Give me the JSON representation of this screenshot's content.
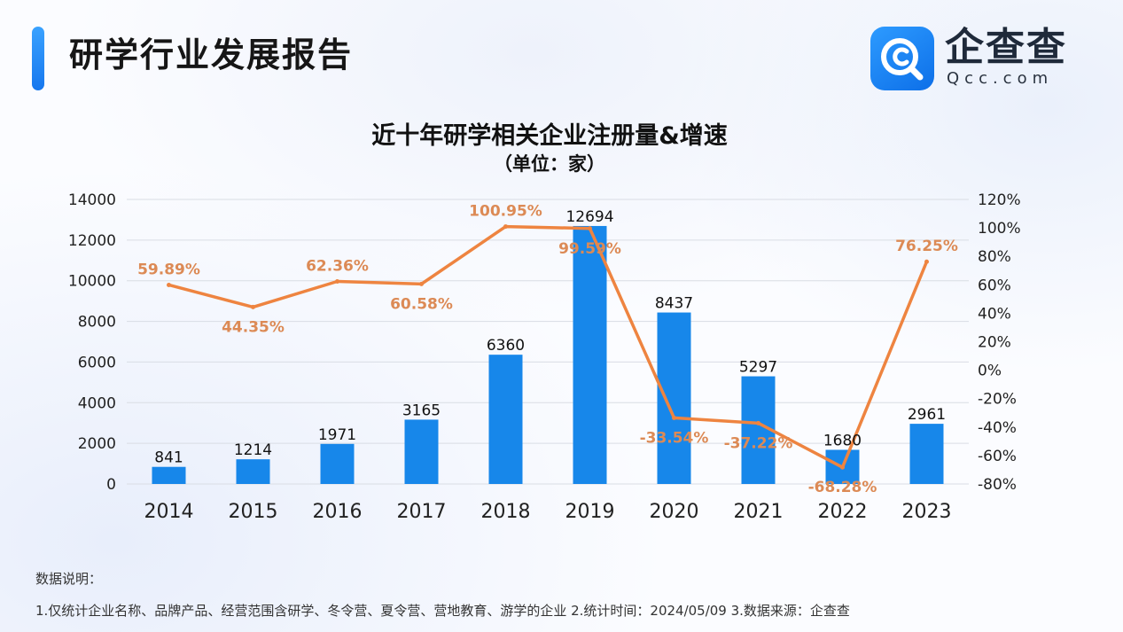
{
  "header": {
    "title": "研学行业发展报告"
  },
  "logo": {
    "name": "企查查",
    "sub": "Qcc.com"
  },
  "chart_data": {
    "type": "bar+line",
    "title": "近十年研学相关企业注册量&增速",
    "subtitle": "（单位：家）",
    "categories": [
      "2014",
      "2015",
      "2016",
      "2017",
      "2018",
      "2019",
      "2020",
      "2021",
      "2022",
      "2023"
    ],
    "series": [
      {
        "name": "注册量",
        "type": "bar",
        "axis": "left",
        "values": [
          841,
          1214,
          1971,
          3165,
          6360,
          12694,
          8437,
          5297,
          1680,
          2961
        ],
        "labels": [
          "841",
          "1214",
          "1971",
          "3165",
          "6360",
          "12694",
          "8437",
          "5297",
          "1680",
          "2961"
        ]
      },
      {
        "name": "增速",
        "type": "line",
        "axis": "right",
        "values": [
          59.89,
          44.35,
          62.36,
          60.58,
          100.95,
          99.59,
          -33.54,
          -37.22,
          -68.28,
          76.25
        ],
        "labels": [
          "59.89%",
          "44.35%",
          "62.36%",
          "60.58%",
          "100.95%",
          "99.59%",
          "-33.54%",
          "-37.22%",
          "-68.28%",
          "76.25%"
        ]
      }
    ],
    "y_left": {
      "range": [
        0,
        14000
      ],
      "ticks": [
        "0",
        "2000",
        "4000",
        "6000",
        "8000",
        "10000",
        "12000",
        "14000"
      ]
    },
    "y_right": {
      "range": [
        -80,
        120
      ],
      "ticks": [
        "-80%",
        "-60%",
        "-40%",
        "-20%",
        "0%",
        "20%",
        "40%",
        "60%",
        "80%",
        "100%",
        "120%"
      ]
    },
    "colors": {
      "bar": "#1787ea",
      "line": "#ee8440",
      "line_label": "#dc8a55",
      "grid": "#d9dde4",
      "text": "#222222"
    },
    "grid": true
  },
  "notes": {
    "heading": "数据说明：",
    "line": "1.仅统计企业名称、品牌产品、经营范围含研学、冬令营、夏令营、营地教育、游学的企业   2.统计时间：2024/05/09    3.数据来源：企查查"
  }
}
